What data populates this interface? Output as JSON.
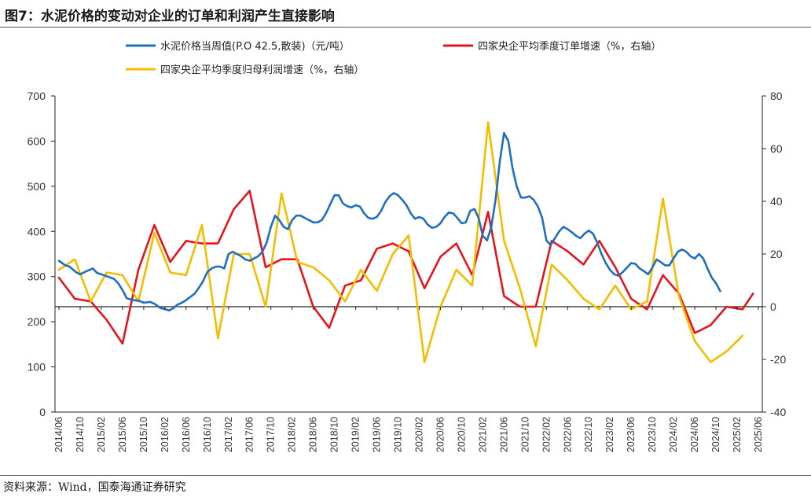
{
  "title": "图7：水泥价格的变动对企业的订单和利润产生直接影响",
  "source": "资料来源：Wind，国泰海通证券研究",
  "colors": {
    "cement": "#1f6fbf",
    "orders": "#e8141b",
    "profit": "#f5bc00"
  },
  "chart_data": {
    "type": "line",
    "left_axis": {
      "min": 0,
      "max": 700,
      "ticks": [
        "0",
        "100",
        "200",
        "300",
        "400",
        "500",
        "600",
        "700"
      ]
    },
    "right_axis": {
      "min": -40,
      "max": 80,
      "ticks": [
        "-40",
        "-20",
        "0",
        "20",
        "40",
        "60",
        "80"
      ]
    },
    "x_tick_labels": [
      "2014/06",
      "2014/10",
      "2015/02",
      "2015/06",
      "2015/10",
      "2016/02",
      "2016/06",
      "2016/10",
      "2017/02",
      "2017/06",
      "2017/10",
      "2018/02",
      "2018/06",
      "2018/10",
      "2019/02",
      "2019/06",
      "2019/10",
      "2020/02",
      "2020/06",
      "2020/10",
      "2021/02",
      "2021/06",
      "2021/10",
      "2022/02",
      "2022/06",
      "2022/10",
      "2023/02",
      "2023/06",
      "2023/10",
      "2024/02",
      "2024/06",
      "2024/10",
      "2025/02",
      "2025/06"
    ],
    "series": [
      {
        "name": "水泥价格当周值(P.O 42.5,散装)（元/吨）",
        "axis": "left",
        "points": [
          [
            0,
            335
          ],
          [
            0.3,
            325
          ],
          [
            0.5,
            322
          ],
          [
            0.8,
            310
          ],
          [
            1.0,
            305
          ],
          [
            1.3,
            312
          ],
          [
            1.6,
            318
          ],
          [
            1.8,
            308
          ],
          [
            2.0,
            305
          ],
          [
            2.3,
            300
          ],
          [
            2.6,
            295
          ],
          [
            2.8,
            285
          ],
          [
            3.0,
            270
          ],
          [
            3.2,
            252
          ],
          [
            3.5,
            248
          ],
          [
            3.8,
            246
          ],
          [
            4.0,
            242
          ],
          [
            4.3,
            244
          ],
          [
            4.5,
            240
          ],
          [
            4.8,
            230
          ],
          [
            5.0,
            228
          ],
          [
            5.2,
            225
          ],
          [
            5.4,
            230
          ],
          [
            5.6,
            238
          ],
          [
            5.8,
            242
          ],
          [
            6.0,
            248
          ],
          [
            6.2,
            255
          ],
          [
            6.4,
            262
          ],
          [
            6.6,
            275
          ],
          [
            6.8,
            290
          ],
          [
            7.0,
            310
          ],
          [
            7.2,
            318
          ],
          [
            7.4,
            322
          ],
          [
            7.6,
            322
          ],
          [
            7.8,
            318
          ],
          [
            8.0,
            350
          ],
          [
            8.2,
            355
          ],
          [
            8.4,
            350
          ],
          [
            8.6,
            345
          ],
          [
            8.8,
            338
          ],
          [
            9.0,
            335
          ],
          [
            9.2,
            340
          ],
          [
            9.4,
            345
          ],
          [
            9.6,
            355
          ],
          [
            9.8,
            375
          ],
          [
            10.0,
            410
          ],
          [
            10.2,
            435
          ],
          [
            10.4,
            425
          ],
          [
            10.6,
            410
          ],
          [
            10.8,
            405
          ],
          [
            11.0,
            425
          ],
          [
            11.2,
            435
          ],
          [
            11.4,
            435
          ],
          [
            11.6,
            430
          ],
          [
            11.8,
            425
          ],
          [
            12.0,
            420
          ],
          [
            12.2,
            420
          ],
          [
            12.4,
            425
          ],
          [
            12.6,
            440
          ],
          [
            12.8,
            460
          ],
          [
            13.0,
            480
          ],
          [
            13.2,
            480
          ],
          [
            13.4,
            462
          ],
          [
            13.6,
            456
          ],
          [
            13.8,
            453
          ],
          [
            14.0,
            458
          ],
          [
            14.2,
            455
          ],
          [
            14.4,
            440
          ],
          [
            14.6,
            430
          ],
          [
            14.8,
            428
          ],
          [
            15.0,
            432
          ],
          [
            15.2,
            445
          ],
          [
            15.4,
            465
          ],
          [
            15.6,
            478
          ],
          [
            15.8,
            485
          ],
          [
            16.0,
            480
          ],
          [
            16.2,
            470
          ],
          [
            16.4,
            458
          ],
          [
            16.6,
            440
          ],
          [
            16.8,
            428
          ],
          [
            17.0,
            432
          ],
          [
            17.2,
            428
          ],
          [
            17.4,
            415
          ],
          [
            17.6,
            408
          ],
          [
            17.8,
            410
          ],
          [
            18.0,
            418
          ],
          [
            18.2,
            432
          ],
          [
            18.4,
            442
          ],
          [
            18.6,
            440
          ],
          [
            18.8,
            430
          ],
          [
            19.0,
            418
          ],
          [
            19.2,
            420
          ],
          [
            19.4,
            445
          ],
          [
            19.6,
            450
          ],
          [
            19.8,
            430
          ],
          [
            20.0,
            390
          ],
          [
            20.2,
            380
          ],
          [
            20.4,
            410
          ],
          [
            20.6,
            470
          ],
          [
            20.8,
            555
          ],
          [
            21.0,
            618
          ],
          [
            21.2,
            600
          ],
          [
            21.4,
            540
          ],
          [
            21.6,
            500
          ],
          [
            21.8,
            475
          ],
          [
            22.0,
            475
          ],
          [
            22.2,
            478
          ],
          [
            22.4,
            470
          ],
          [
            22.6,
            455
          ],
          [
            22.8,
            430
          ],
          [
            23.0,
            380
          ],
          [
            23.2,
            370
          ],
          [
            23.4,
            385
          ],
          [
            23.6,
            400
          ],
          [
            23.8,
            410
          ],
          [
            24.0,
            405
          ],
          [
            24.2,
            398
          ],
          [
            24.4,
            390
          ],
          [
            24.6,
            385
          ],
          [
            24.8,
            395
          ],
          [
            25.0,
            402
          ],
          [
            25.2,
            395
          ],
          [
            25.4,
            375
          ],
          [
            25.6,
            350
          ],
          [
            25.8,
            330
          ],
          [
            26.0,
            315
          ],
          [
            26.2,
            305
          ],
          [
            26.4,
            302
          ],
          [
            26.6,
            310
          ],
          [
            26.8,
            320
          ],
          [
            27.0,
            330
          ],
          [
            27.2,
            328
          ],
          [
            27.4,
            318
          ],
          [
            27.6,
            312
          ],
          [
            27.8,
            305
          ],
          [
            28.0,
            320
          ],
          [
            28.2,
            338
          ],
          [
            28.4,
            332
          ],
          [
            28.6,
            325
          ],
          [
            28.8,
            325
          ],
          [
            29.0,
            340
          ],
          [
            29.2,
            355
          ],
          [
            29.4,
            360
          ],
          [
            29.6,
            355
          ],
          [
            29.8,
            345
          ],
          [
            30.0,
            340
          ],
          [
            30.2,
            350
          ],
          [
            30.4,
            340
          ],
          [
            30.6,
            318
          ],
          [
            30.8,
            298
          ],
          [
            31.0,
            285
          ],
          [
            31.2,
            268
          ]
        ]
      },
      {
        "name": "四家央企平均季度订单增速（%，右轴）",
        "axis": "right",
        "points": [
          [
            0,
            11
          ],
          [
            0.75,
            3
          ],
          [
            1.5,
            2
          ],
          [
            2.25,
            -5
          ],
          [
            3.0,
            -14
          ],
          [
            3.75,
            14
          ],
          [
            4.5,
            31
          ],
          [
            5.25,
            17
          ],
          [
            6.0,
            25
          ],
          [
            6.75,
            24
          ],
          [
            7.5,
            24
          ],
          [
            8.25,
            37
          ],
          [
            9.0,
            44
          ],
          [
            9.75,
            15
          ],
          [
            10.5,
            18
          ],
          [
            11.25,
            18
          ],
          [
            12.0,
            0
          ],
          [
            12.75,
            -8
          ],
          [
            13.5,
            8
          ],
          [
            14.25,
            10
          ],
          [
            15.0,
            22
          ],
          [
            15.75,
            24
          ],
          [
            16.5,
            21
          ],
          [
            17.25,
            7
          ],
          [
            18.0,
            19
          ],
          [
            18.75,
            24
          ],
          [
            19.5,
            12
          ],
          [
            20.25,
            36
          ],
          [
            21.0,
            4
          ],
          [
            21.75,
            0
          ],
          [
            22.5,
            0
          ],
          [
            23.25,
            25
          ],
          [
            24.0,
            21
          ],
          [
            24.75,
            16
          ],
          [
            25.5,
            25
          ],
          [
            26.25,
            15
          ],
          [
            27.0,
            3
          ],
          [
            27.75,
            -1
          ],
          [
            28.5,
            12
          ],
          [
            29.25,
            5
          ],
          [
            30.0,
            -10
          ],
          [
            30.75,
            -7
          ],
          [
            31.5,
            0
          ],
          [
            32.25,
            -1
          ],
          [
            32.75,
            5
          ]
        ]
      },
      {
        "name": "四家央企平均季度归母利润增速（%，右轴）",
        "axis": "right",
        "points": [
          [
            0,
            14
          ],
          [
            0.75,
            18
          ],
          [
            1.5,
            2
          ],
          [
            2.25,
            13
          ],
          [
            3.0,
            12
          ],
          [
            3.75,
            2
          ],
          [
            4.5,
            28
          ],
          [
            5.25,
            13
          ],
          [
            6.0,
            12
          ],
          [
            6.75,
            31
          ],
          [
            7.5,
            -12
          ],
          [
            8.25,
            20
          ],
          [
            9.0,
            20
          ],
          [
            9.75,
            0
          ],
          [
            10.5,
            43
          ],
          [
            11.25,
            17
          ],
          [
            12.0,
            15
          ],
          [
            12.75,
            10
          ],
          [
            13.5,
            2
          ],
          [
            14.25,
            14
          ],
          [
            15.0,
            6
          ],
          [
            15.75,
            20
          ],
          [
            16.5,
            27
          ],
          [
            17.25,
            -21
          ],
          [
            18.0,
            0
          ],
          [
            18.75,
            14
          ],
          [
            19.5,
            8
          ],
          [
            20.25,
            70
          ],
          [
            21.0,
            25
          ],
          [
            21.75,
            7
          ],
          [
            22.5,
            -15
          ],
          [
            23.25,
            16
          ],
          [
            24.0,
            10
          ],
          [
            24.75,
            3
          ],
          [
            25.5,
            -1
          ],
          [
            26.25,
            8
          ],
          [
            27.0,
            -1
          ],
          [
            27.75,
            2
          ],
          [
            28.5,
            41
          ],
          [
            29.25,
            4
          ],
          [
            30.0,
            -13
          ],
          [
            30.75,
            -21
          ],
          [
            31.5,
            -17
          ],
          [
            32.25,
            -11
          ]
        ]
      }
    ],
    "zero_line_right": 0
  }
}
